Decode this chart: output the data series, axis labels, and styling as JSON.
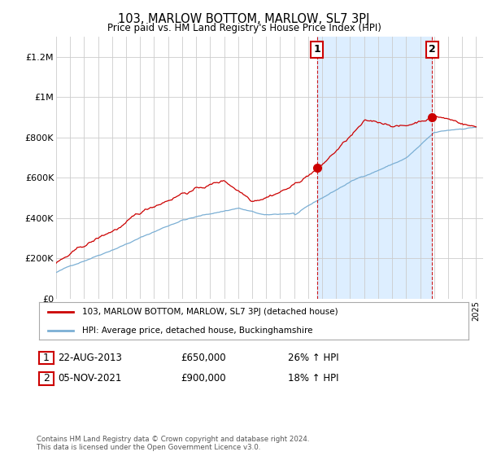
{
  "title": "103, MARLOW BOTTOM, MARLOW, SL7 3PJ",
  "subtitle": "Price paid vs. HM Land Registry's House Price Index (HPI)",
  "ylim": [
    0,
    1300000
  ],
  "yticks": [
    0,
    200000,
    400000,
    600000,
    800000,
    1000000,
    1200000
  ],
  "ytick_labels": [
    "£0",
    "£200K",
    "£400K",
    "£600K",
    "£800K",
    "£1M",
    "£1.2M"
  ],
  "x_start_year": 1995,
  "x_end_year": 2025,
  "hpi_color": "#7bafd4",
  "price_color": "#cc0000",
  "shade_color": "#ddeeff",
  "sale1_year": 2013.64,
  "sale1_price": 650000,
  "sale2_year": 2021.84,
  "sale2_price": 900000,
  "vline_color": "#cc0000",
  "legend_label_price": "103, MARLOW BOTTOM, MARLOW, SL7 3PJ (detached house)",
  "legend_label_hpi": "HPI: Average price, detached house, Buckinghamshire",
  "footer": "Contains HM Land Registry data © Crown copyright and database right 2024.\nThis data is licensed under the Open Government Licence v3.0.",
  "background_color": "#ffffff",
  "plot_bg_color": "#ffffff"
}
